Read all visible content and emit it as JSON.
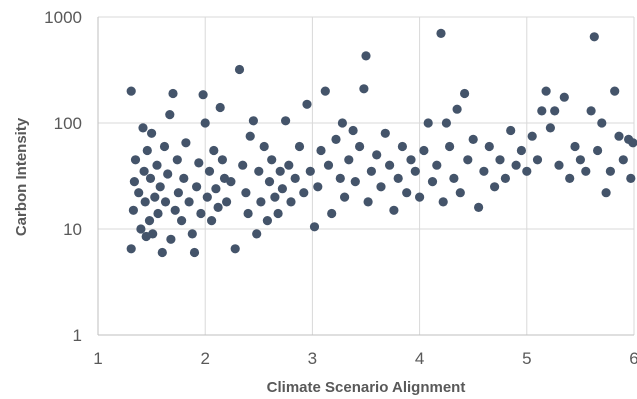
{
  "chart_data": {
    "type": "scatter",
    "xlabel": "Climate Scenario Alignment",
    "ylabel": "Carbon Intensity",
    "xlim": [
      1,
      6
    ],
    "ylim": [
      1,
      1000
    ],
    "y_scale": "log",
    "x_ticks": [
      "1",
      "2",
      "3",
      "4",
      "5",
      "6"
    ],
    "y_ticks": [
      "1",
      "10",
      "100",
      "1000"
    ],
    "grid": "vertical and horizontal major gridlines",
    "legend": "none",
    "marker_color": "#44546a",
    "points": [
      [
        1.31,
        200
      ],
      [
        1.31,
        6.5
      ],
      [
        1.33,
        15
      ],
      [
        1.34,
        28
      ],
      [
        1.35,
        45
      ],
      [
        1.38,
        22
      ],
      [
        1.4,
        10
      ],
      [
        1.42,
        90
      ],
      [
        1.43,
        35
      ],
      [
        1.44,
        18
      ],
      [
        1.45,
        8.5
      ],
      [
        1.46,
        55
      ],
      [
        1.48,
        12
      ],
      [
        1.49,
        30
      ],
      [
        1.5,
        80
      ],
      [
        1.51,
        9
      ],
      [
        1.53,
        20
      ],
      [
        1.55,
        40
      ],
      [
        1.56,
        14
      ],
      [
        1.58,
        25
      ],
      [
        1.6,
        6
      ],
      [
        1.62,
        60
      ],
      [
        1.63,
        18
      ],
      [
        1.65,
        33
      ],
      [
        1.67,
        120
      ],
      [
        1.68,
        8
      ],
      [
        1.7,
        190
      ],
      [
        1.72,
        15
      ],
      [
        1.74,
        45
      ],
      [
        1.75,
        22
      ],
      [
        1.78,
        12
      ],
      [
        1.8,
        30
      ],
      [
        1.82,
        65
      ],
      [
        1.85,
        18
      ],
      [
        1.88,
        9
      ],
      [
        1.9,
        6
      ],
      [
        1.92,
        25
      ],
      [
        1.94,
        42
      ],
      [
        1.96,
        14
      ],
      [
        1.98,
        185
      ],
      [
        2.0,
        100
      ],
      [
        2.02,
        20
      ],
      [
        2.04,
        35
      ],
      [
        2.06,
        12
      ],
      [
        2.08,
        55
      ],
      [
        2.1,
        24
      ],
      [
        2.12,
        16
      ],
      [
        2.14,
        140
      ],
      [
        2.16,
        45
      ],
      [
        2.18,
        30
      ],
      [
        2.2,
        18
      ],
      [
        2.24,
        28
      ],
      [
        2.28,
        6.5
      ],
      [
        2.32,
        320
      ],
      [
        2.35,
        40
      ],
      [
        2.38,
        22
      ],
      [
        2.4,
        14
      ],
      [
        2.42,
        75
      ],
      [
        2.45,
        105
      ],
      [
        2.48,
        9
      ],
      [
        2.5,
        35
      ],
      [
        2.52,
        18
      ],
      [
        2.55,
        60
      ],
      [
        2.58,
        12
      ],
      [
        2.6,
        28
      ],
      [
        2.62,
        45
      ],
      [
        2.65,
        20
      ],
      [
        2.68,
        14
      ],
      [
        2.7,
        35
      ],
      [
        2.72,
        24
      ],
      [
        2.75,
        105
      ],
      [
        2.78,
        40
      ],
      [
        2.8,
        18
      ],
      [
        2.84,
        30
      ],
      [
        2.88,
        60
      ],
      [
        2.92,
        22
      ],
      [
        2.95,
        150
      ],
      [
        2.98,
        35
      ],
      [
        3.02,
        10.5
      ],
      [
        3.05,
        25
      ],
      [
        3.08,
        55
      ],
      [
        3.12,
        200
      ],
      [
        3.15,
        40
      ],
      [
        3.18,
        14
      ],
      [
        3.22,
        70
      ],
      [
        3.26,
        30
      ],
      [
        3.28,
        100
      ],
      [
        3.3,
        20
      ],
      [
        3.34,
        45
      ],
      [
        3.38,
        85
      ],
      [
        3.4,
        28
      ],
      [
        3.44,
        60
      ],
      [
        3.48,
        210
      ],
      [
        3.5,
        430
      ],
      [
        3.52,
        18
      ],
      [
        3.55,
        35
      ],
      [
        3.6,
        50
      ],
      [
        3.64,
        25
      ],
      [
        3.68,
        80
      ],
      [
        3.72,
        40
      ],
      [
        3.76,
        15
      ],
      [
        3.8,
        30
      ],
      [
        3.84,
        60
      ],
      [
        3.88,
        22
      ],
      [
        3.92,
        45
      ],
      [
        3.96,
        35
      ],
      [
        4.0,
        20
      ],
      [
        4.04,
        55
      ],
      [
        4.08,
        100
      ],
      [
        4.12,
        28
      ],
      [
        4.16,
        40
      ],
      [
        4.2,
        700
      ],
      [
        4.22,
        18
      ],
      [
        4.25,
        100
      ],
      [
        4.28,
        60
      ],
      [
        4.32,
        30
      ],
      [
        4.35,
        135
      ],
      [
        4.38,
        22
      ],
      [
        4.42,
        190
      ],
      [
        4.45,
        45
      ],
      [
        4.5,
        70
      ],
      [
        4.55,
        16
      ],
      [
        4.6,
        35
      ],
      [
        4.65,
        60
      ],
      [
        4.7,
        25
      ],
      [
        4.75,
        45
      ],
      [
        4.8,
        30
      ],
      [
        4.85,
        85
      ],
      [
        4.9,
        40
      ],
      [
        4.95,
        55
      ],
      [
        5.0,
        35
      ],
      [
        5.05,
        75
      ],
      [
        5.1,
        45
      ],
      [
        5.14,
        130
      ],
      [
        5.18,
        200
      ],
      [
        5.22,
        90
      ],
      [
        5.26,
        130
      ],
      [
        5.3,
        40
      ],
      [
        5.35,
        175
      ],
      [
        5.4,
        30
      ],
      [
        5.45,
        60
      ],
      [
        5.5,
        45
      ],
      [
        5.55,
        35
      ],
      [
        5.6,
        130
      ],
      [
        5.63,
        650
      ],
      [
        5.66,
        55
      ],
      [
        5.7,
        100
      ],
      [
        5.74,
        22
      ],
      [
        5.78,
        35
      ],
      [
        5.82,
        200
      ],
      [
        5.86,
        75
      ],
      [
        5.9,
        45
      ],
      [
        5.95,
        70
      ],
      [
        5.97,
        30
      ],
      [
        5.99,
        65
      ]
    ]
  }
}
